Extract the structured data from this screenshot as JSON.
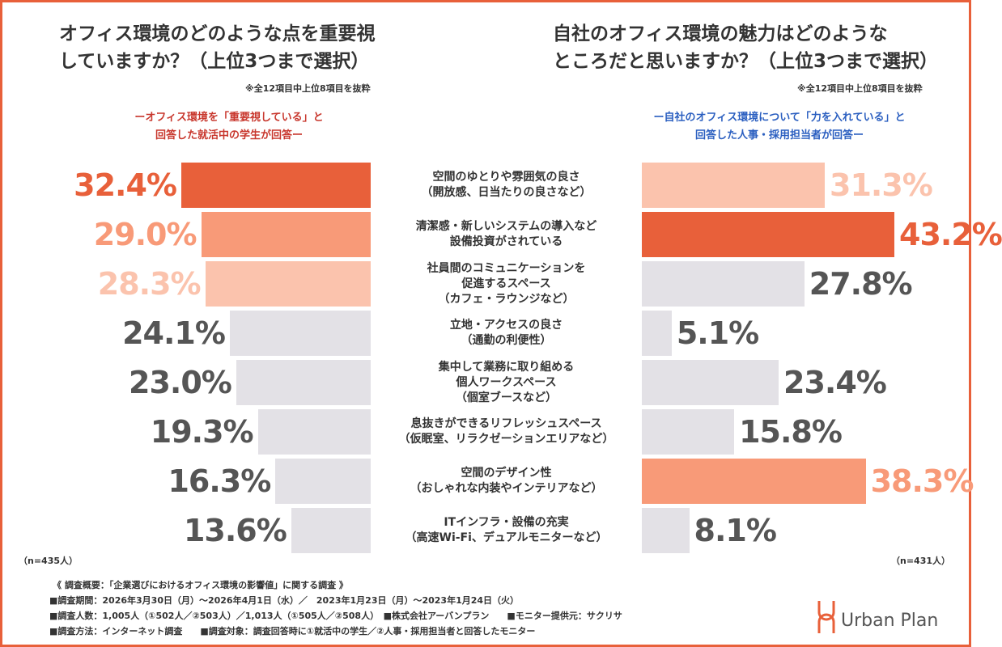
{
  "chart_data": {
    "type": "butterfly",
    "left_title": "オフィス環境のどのような点を重要視\nしていますか？（上位3つまで選択）",
    "right_title": "自社のオフィス環境の魅力はどのような\nところだと思いますか？（上位3つまで選択）",
    "left_note": "※全12項目中上位8項目を抜粋",
    "right_note": "※全12項目中上位8項目を抜粋",
    "categories": [
      "空間のゆとりや雰囲気の良さ\n（開放感、日当たりの良さなど）",
      "清潔感・新しいシステムの導入など\n設備投資がされている",
      "社員間のコミュニケーションを\n促進するスペース\n（カフェ・ラウンジなど）",
      "立地・アクセスの良さ\n（通勤の利便性）",
      "集中して業務に取り組める\n個人ワークスペース\n（個室ブースなど）",
      "息抜きができるリフレッシュスペース\n（仮眠室、リラクゼーションエリアなど）",
      "空間のデザイン性\n（おしゃれな内装やインテリアなど）",
      "ITインフラ・設備の充実\n（高速Wi-Fi、デュアルモニターなど）"
    ],
    "series": [
      {
        "name": "ーオフィス環境を「重要視している」と\n回答した就活中の学生が回答ー",
        "name_color": "#c8372d",
        "n_label": "（n=435人）",
        "values": [
          32.4,
          29.0,
          28.3,
          24.1,
          23.0,
          19.3,
          16.3,
          13.6
        ],
        "value_labels": [
          "32.4%",
          "29.0%",
          "28.3%",
          "24.1%",
          "23.0%",
          "19.3%",
          "16.3%",
          "13.6%"
        ],
        "colors": [
          "#e8603a",
          "#f89a78",
          "#fbc3ad",
          "#e3e1e6",
          "#e3e1e6",
          "#e3e1e6",
          "#e3e1e6",
          "#e3e1e6"
        ],
        "label_colors": [
          "#e8603a",
          "#f89a78",
          "#fbc3ad",
          "#555555",
          "#555555",
          "#555555",
          "#555555",
          "#555555"
        ]
      },
      {
        "name": "ー自社のオフィス環境について「力を入れている」と\n回答した人事・採用担当者が回答ー",
        "name_color": "#2b5fc0",
        "n_label": "（n=431人）",
        "values": [
          31.3,
          43.2,
          27.8,
          5.1,
          23.4,
          15.8,
          38.3,
          8.1
        ],
        "value_labels": [
          "31.3%",
          "43.2%",
          "27.8%",
          "5.1%",
          "23.4%",
          "15.8%",
          "38.3%",
          "8.1%"
        ],
        "colors": [
          "#fbc3ad",
          "#e8603a",
          "#e3e1e6",
          "#e3e1e6",
          "#e3e1e6",
          "#e3e1e6",
          "#f89a78",
          "#e3e1e6"
        ],
        "label_colors": [
          "#fbc3ad",
          "#e8603a",
          "#555555",
          "#555555",
          "#555555",
          "#555555",
          "#f89a78",
          "#555555"
        ]
      }
    ],
    "xlim": [
      0,
      45
    ],
    "footer": [
      "《 調査概要：「企業選びにおけるオフィス環境の影響値」に関する調査 》",
      "■調査期間：2026年3月30日（月）～2026年4月1日（水）／　2023年1月23日（月）～2023年1月24日（火）",
      "■調査人数：1,005人（①502人／②503人）／1,013人（①505人／②508人）　■株式会社アーバンプラン　　■モニター提供元：サクリサ",
      "■調査方法：インターネット調査　　■調査対象：調査回答時に①就活中の学生／②人事・採用担当者と回答したモニター"
    ],
    "logo": "Urban Plan"
  }
}
